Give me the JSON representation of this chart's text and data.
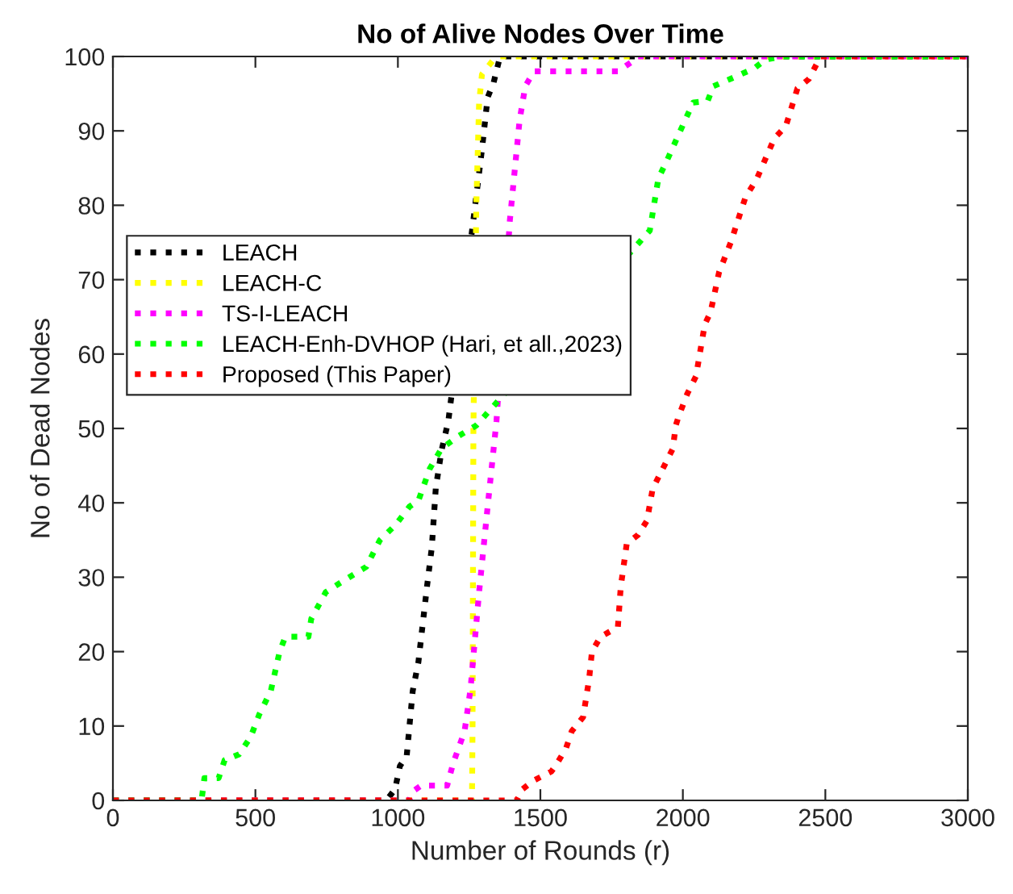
{
  "chart_data": {
    "type": "line",
    "title": "No of Alive Nodes Over Time",
    "xlabel": "Number of Rounds (r)",
    "ylabel": "No of Dead Nodes",
    "xlim": [
      0,
      3000
    ],
    "ylim": [
      0,
      100
    ],
    "xticks": [
      0,
      500,
      1000,
      1500,
      2000,
      2500,
      3000
    ],
    "yticks": [
      0,
      10,
      20,
      30,
      40,
      50,
      60,
      70,
      80,
      90,
      100
    ],
    "grid": false,
    "legend": "left",
    "line_style": "dotted",
    "marker": "none",
    "series": [
      {
        "name": "LEACH",
        "color": "#000000",
        "x": [
          0,
          960,
          990,
          1007,
          1031,
          1052,
          1072,
          1102,
          1119,
          1133,
          1153,
          1177,
          1268,
          1295,
          1315,
          1336,
          1356,
          1366,
          3000
        ],
        "values": [
          0,
          0,
          1.5,
          4.6,
          6,
          14.7,
          18.6,
          28.7,
          34,
          42,
          47,
          51,
          79,
          87.5,
          94.5,
          96.5,
          99.6,
          100,
          100
        ]
      },
      {
        "name": "LEACH-C",
        "color": "#ffff00",
        "x": [
          0,
          1260,
          1262,
          1265,
          1275,
          1285,
          1295,
          1336,
          1356,
          3000
        ],
        "values": [
          0,
          0,
          10,
          50,
          79.7,
          93.8,
          97.6,
          99.6,
          100,
          100
        ]
      },
      {
        "name": "TS-I-LEACH",
        "color": "#ff00ff",
        "x": [
          0,
          1040,
          1052,
          1082,
          1173,
          1194,
          1234,
          1255,
          1265,
          1285,
          1315,
          1346,
          1393,
          1427,
          1447,
          1478,
          1772,
          1833,
          1843,
          3000
        ],
        "values": [
          0,
          0,
          1.2,
          2,
          2,
          5,
          9.3,
          15,
          19.4,
          28,
          39.5,
          51,
          78,
          91.4,
          96,
          98,
          98,
          99.6,
          100,
          100
        ]
      },
      {
        "name": "LEACH-Enh-DVHOP (Hari, et all.,2023)",
        "color": "#00ff00",
        "x": [
          0,
          311,
          321,
          371,
          392,
          443,
          483,
          514,
          554,
          585,
          605,
          686,
          696,
          747,
          808,
          889,
          937,
          991,
          1041,
          1072,
          1112,
          1153,
          1214,
          1275,
          1884,
          1914,
          1944,
          1985,
          2036,
          2087,
          2107,
          2168,
          2250,
          2290,
          2351,
          3000
        ],
        "values": [
          0,
          0,
          3,
          3,
          5.4,
          6.2,
          8.5,
          11.6,
          14.7,
          20,
          22,
          22,
          24.4,
          28,
          29.5,
          31.4,
          35,
          37,
          39.5,
          40.3,
          44.6,
          47.3,
          49,
          50.4,
          76.6,
          83.6,
          86,
          89.5,
          93.8,
          94,
          96,
          97,
          98.4,
          99.6,
          100,
          100
        ]
      },
      {
        "name": "Proposed (This Paper)",
        "color": "#ff0000",
        "x": [
          0,
          1417,
          1437,
          1478,
          1539,
          1559,
          1590,
          1610,
          1650,
          1671,
          1681,
          1711,
          1772,
          1782,
          1803,
          1843,
          1874,
          1894,
          1935,
          1965,
          1975,
          1985,
          2016,
          2046,
          2077,
          2097,
          2127,
          2168,
          2219,
          2260,
          2321,
          2361,
          2402,
          2443,
          2483,
          3000
        ],
        "values": [
          0,
          0,
          1.5,
          2.7,
          3.9,
          5,
          7,
          9.3,
          11.2,
          16.3,
          20,
          22,
          23.3,
          28.7,
          34.5,
          35.7,
          37.6,
          41.9,
          45,
          47.3,
          50.4,
          51.6,
          54.7,
          57,
          64,
          65.6,
          71,
          75,
          81,
          83.6,
          89,
          90.6,
          95.7,
          97,
          100,
          100
        ]
      }
    ]
  }
}
